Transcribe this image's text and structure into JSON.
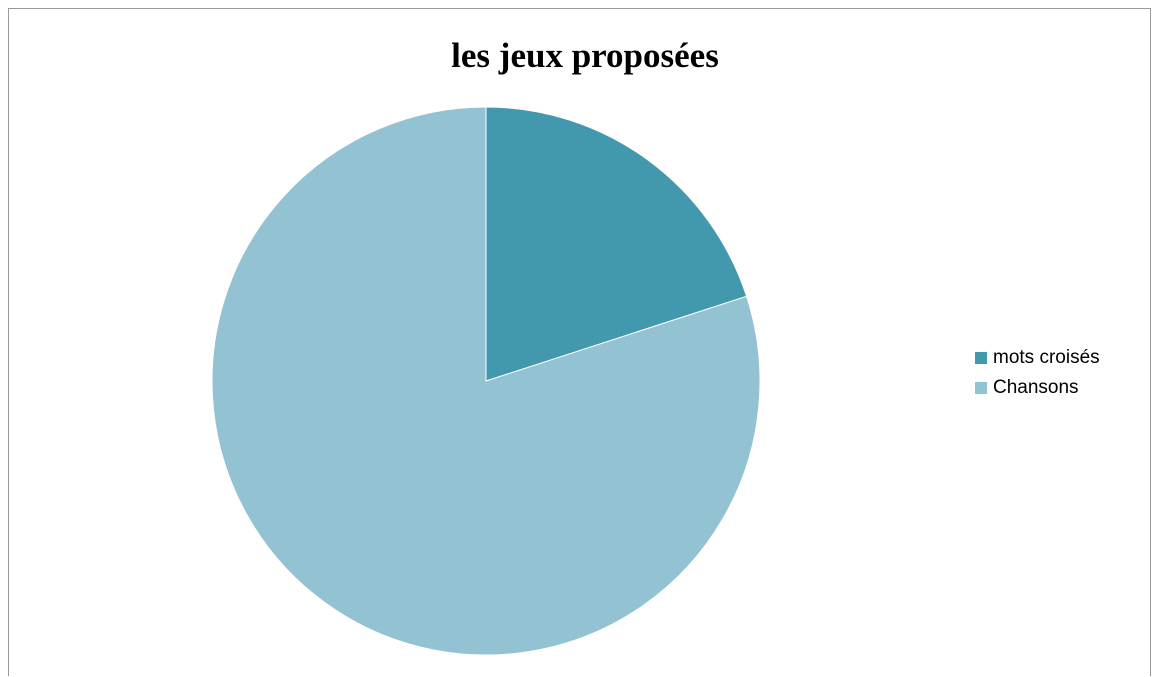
{
  "chart_data": {
    "type": "pie",
    "title": "les jeux proposées",
    "categories": [
      "mots croisés",
      "Chansons"
    ],
    "values": [
      20,
      80
    ],
    "colors": [
      "#4299ae",
      "#93c2d3"
    ],
    "legend_position": "right"
  }
}
